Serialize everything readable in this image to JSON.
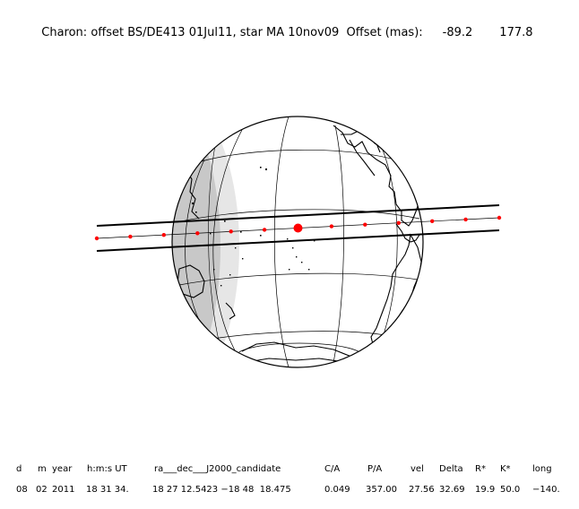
{
  "header": {
    "title": "Charon: offset BS/DE413 01Jul11, star MA 10nov09  Offset (mas):",
    "offset_ra": "-89.2",
    "offset_dec": "177.8"
  },
  "globe": {
    "land_outline_color": "#000000",
    "night_shade_color": "#c8c8c8",
    "twilight_shade_color": "#e6e6e6",
    "track_color": "#ff0000",
    "grid_color": "#000000",
    "ring_outline_color": "#000000",
    "continents": [
      "north-america",
      "central-america",
      "south-america",
      "antarctica",
      "asia-east",
      "australia",
      "pacific-islands"
    ]
  },
  "footer": {
    "columns": [
      {
        "key": "d",
        "header": "d",
        "value": "08"
      },
      {
        "key": "m",
        "header": "m",
        "value": "02"
      },
      {
        "key": "year",
        "header": "year",
        "value": "2011"
      },
      {
        "key": "hms",
        "header": "h:m:s UT",
        "value": "18 31 34."
      },
      {
        "key": "ra",
        "header": "ra___dec___J2000_candidate",
        "value": "18 27 12.5423 −18 48  18.475"
      },
      {
        "key": "ca",
        "header": "C/A",
        "value": "0.049"
      },
      {
        "key": "pa",
        "header": "P/A",
        "value": "357.00"
      },
      {
        "key": "vel",
        "header": "vel",
        "value": "27.56"
      },
      {
        "key": "delta",
        "header": "Delta",
        "value": "32.69"
      },
      {
        "key": "rstar",
        "header": "R*",
        "value": "19.9"
      },
      {
        "key": "kstar",
        "header": "K*",
        "value": "50.0"
      },
      {
        "key": "long",
        "header": "long",
        "value": "−140."
      }
    ]
  }
}
